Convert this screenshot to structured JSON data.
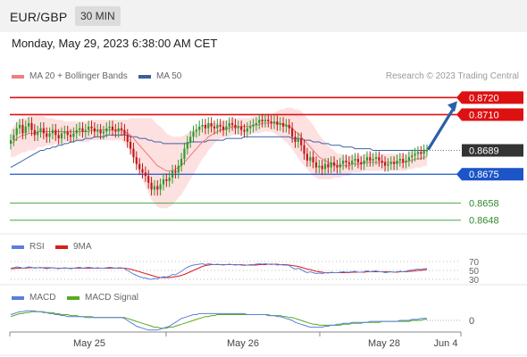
{
  "header": {
    "pair": "EUR/GBP",
    "interval": "30 MIN"
  },
  "timestamp": "Monday, May 29, 2023 6:38:00 AM CET",
  "legend": {
    "ma20_bb": "MA 20 + Bollinger Bands",
    "ma50": "MA 50",
    "credit": "Research © 2023 Trading Central"
  },
  "colors": {
    "price_candles": "#2e9a2e",
    "price_candles_down": "#c01a1a",
    "ma20": "#ee7777",
    "bollinger_fill": "#fde0e0",
    "ma50": "#4060a8",
    "resistance": "#dd1111",
    "current": "#333333",
    "pivot": "#1c55c8",
    "support": "#44a844",
    "arrow": "#2a5fa8",
    "rsi": "#5b7fd8",
    "rsi_9ma": "#d81c1c",
    "macd": "#5b7fd8",
    "macd_signal": "#55aa22"
  },
  "chart_data": [
    {
      "type": "candlestick",
      "name": "price",
      "x_ticks": [
        "May 25",
        "May 26",
        "May 28",
        "Jun 4"
      ],
      "y_ticks": [
        "0.8720",
        "0.8710",
        "0.8689",
        "0.8675",
        "0.8658",
        "0.8648"
      ],
      "levels": [
        {
          "label": "0.8720",
          "value": 0.872,
          "kind": "resistance"
        },
        {
          "label": "0.8710",
          "value": 0.871,
          "kind": "resistance"
        },
        {
          "label": "0.8689",
          "value": 0.8689,
          "kind": "current"
        },
        {
          "label": "0.8675",
          "value": 0.8675,
          "kind": "pivot"
        },
        {
          "label": "0.8658",
          "value": 0.8658,
          "kind": "support"
        },
        {
          "label": "0.8648",
          "value": 0.8648,
          "kind": "support"
        }
      ],
      "close": [
        0.8695,
        0.8698,
        0.8702,
        0.8704,
        0.8699,
        0.8703,
        0.8705,
        0.8701,
        0.8698,
        0.87,
        0.8702,
        0.8699,
        0.8697,
        0.8699,
        0.8701,
        0.8698,
        0.8696,
        0.8699,
        0.87,
        0.8698,
        0.8697,
        0.8699,
        0.8701,
        0.8702,
        0.87,
        0.8701,
        0.8703,
        0.8702,
        0.87,
        0.8701,
        0.8699,
        0.87,
        0.8702,
        0.8703,
        0.8701,
        0.87,
        0.8702,
        0.8701,
        0.8698,
        0.8694,
        0.869,
        0.8685,
        0.8681,
        0.8678,
        0.8676,
        0.8674,
        0.867,
        0.8666,
        0.8668,
        0.8666,
        0.8669,
        0.8672,
        0.8671,
        0.8673,
        0.8677,
        0.8676,
        0.868,
        0.8684,
        0.869,
        0.8694,
        0.8697,
        0.87,
        0.8701,
        0.8703,
        0.8704,
        0.8702,
        0.8705,
        0.8703,
        0.8702,
        0.8704,
        0.8703,
        0.8701,
        0.8703,
        0.8705,
        0.8704,
        0.8702,
        0.8703,
        0.8701,
        0.87,
        0.8702,
        0.8703,
        0.8704,
        0.8705,
        0.8707,
        0.8706,
        0.8707,
        0.8706,
        0.8705,
        0.8706,
        0.8704,
        0.8705,
        0.8703,
        0.8704,
        0.8702,
        0.8697,
        0.8694,
        0.8696,
        0.8692,
        0.8687,
        0.8683,
        0.8685,
        0.8682,
        0.8679,
        0.868,
        0.8678,
        0.8681,
        0.8679,
        0.8682,
        0.868,
        0.8679,
        0.8681,
        0.8683,
        0.8682,
        0.8681,
        0.8683,
        0.8684,
        0.8682,
        0.8681,
        0.8683,
        0.8685,
        0.8683,
        0.8684,
        0.8685,
        0.8683,
        0.8682,
        0.868,
        0.8681,
        0.8682,
        0.8681,
        0.8683,
        0.8684,
        0.8682,
        0.8683,
        0.8685,
        0.8686,
        0.8687,
        0.8688,
        0.8687,
        0.8689,
        0.8689
      ],
      "ma20": [
        0.8693,
        0.8694,
        0.8696,
        0.8697,
        0.8698,
        0.8698,
        0.8699,
        0.8699,
        0.8699,
        0.87,
        0.87,
        0.87,
        0.87,
        0.87,
        0.87,
        0.87,
        0.87,
        0.87,
        0.87,
        0.87,
        0.87,
        0.87,
        0.87,
        0.87,
        0.87,
        0.87,
        0.87,
        0.8701,
        0.8701,
        0.8701,
        0.8701,
        0.8701,
        0.8701,
        0.8701,
        0.8701,
        0.8701,
        0.8701,
        0.8701,
        0.87,
        0.8699,
        0.8698,
        0.8696,
        0.8694,
        0.8692,
        0.869,
        0.8688,
        0.8686,
        0.8684,
        0.8682,
        0.868,
        0.8679,
        0.8678,
        0.8677,
        0.8677,
        0.8677,
        0.8678,
        0.8679,
        0.868,
        0.8682,
        0.8684,
        0.8686,
        0.8688,
        0.869,
        0.8692,
        0.8694,
        0.8695,
        0.8697,
        0.8698,
        0.8699,
        0.87,
        0.8701,
        0.8701,
        0.8702,
        0.8702,
        0.8703,
        0.8703,
        0.8703,
        0.8703,
        0.8703,
        0.8703,
        0.8703,
        0.8704,
        0.8704,
        0.8704,
        0.8705,
        0.8705,
        0.8705,
        0.8705,
        0.8705,
        0.8705,
        0.8705,
        0.8704,
        0.8704,
        0.8703,
        0.8702,
        0.87,
        0.8699,
        0.8697,
        0.8695,
        0.8693,
        0.8691,
        0.8689,
        0.8687,
        0.8685,
        0.8684,
        0.8683,
        0.8682,
        0.8681,
        0.8681,
        0.868,
        0.868,
        0.868,
        0.868,
        0.868,
        0.8681,
        0.8681,
        0.8681,
        0.8681,
        0.8682,
        0.8682,
        0.8682,
        0.8682,
        0.8682,
        0.8682,
        0.8682,
        0.8682,
        0.8682,
        0.8682,
        0.8682,
        0.8682,
        0.8682,
        0.8682,
        0.8682,
        0.8683,
        0.8683,
        0.8684,
        0.8684,
        0.8684,
        0.8685,
        0.8685
      ],
      "ma50": [
        0.8679,
        0.868,
        0.8681,
        0.8682,
        0.8683,
        0.8684,
        0.8685,
        0.8686,
        0.8687,
        0.8688,
        0.8689,
        0.8689,
        0.869,
        0.869,
        0.8691,
        0.8691,
        0.8692,
        0.8692,
        0.8693,
        0.8693,
        0.8694,
        0.8694,
        0.8695,
        0.8695,
        0.8695,
        0.8696,
        0.8696,
        0.8696,
        0.8697,
        0.8697,
        0.8697,
        0.8697,
        0.8698,
        0.8698,
        0.8698,
        0.8698,
        0.8698,
        0.8698,
        0.8698,
        0.8698,
        0.8697,
        0.8697,
        0.8697,
        0.8696,
        0.8696,
        0.8696,
        0.8695,
        0.8695,
        0.8694,
        0.8694,
        0.8694,
        0.8693,
        0.8693,
        0.8693,
        0.8693,
        0.8693,
        0.8693,
        0.8693,
        0.8693,
        0.8693,
        0.8694,
        0.8694,
        0.8694,
        0.8694,
        0.8694,
        0.8694,
        0.8695,
        0.8695,
        0.8695,
        0.8695,
        0.8695,
        0.8695,
        0.8696,
        0.8696,
        0.8696,
        0.8696,
        0.8696,
        0.8696,
        0.8697,
        0.8697,
        0.8697,
        0.8697,
        0.8697,
        0.8697,
        0.8697,
        0.8697,
        0.8697,
        0.8697,
        0.8697,
        0.8697,
        0.8697,
        0.8697,
        0.8697,
        0.8697,
        0.8696,
        0.8696,
        0.8696,
        0.8696,
        0.8695,
        0.8695,
        0.8695,
        0.8694,
        0.8694,
        0.8694,
        0.8693,
        0.8693,
        0.8693,
        0.8692,
        0.8692,
        0.8692,
        0.8692,
        0.8691,
        0.8691,
        0.8691,
        0.8691,
        0.869,
        0.869,
        0.869,
        0.869,
        0.869,
        0.869,
        0.8689,
        0.8689,
        0.8689,
        0.8689,
        0.8689,
        0.8689,
        0.8689,
        0.8689,
        0.8689,
        0.8689,
        0.8689,
        0.8689,
        0.8689,
        0.8689,
        0.8689,
        0.8689,
        0.8689,
        0.8689,
        0.8689
      ],
      "bb_width": [
        0.0008,
        0.0009,
        0.001,
        0.001,
        0.001,
        0.001,
        0.001,
        0.001,
        0.001,
        0.0009,
        0.0009,
        0.0009,
        0.0008,
        0.0008,
        0.0008,
        0.0007,
        0.0007,
        0.0007,
        0.0006,
        0.0006,
        0.0006,
        0.0006,
        0.0006,
        0.0006,
        0.0006,
        0.0006,
        0.0006,
        0.0006,
        0.0006,
        0.0006,
        0.0006,
        0.0006,
        0.0006,
        0.0006,
        0.0006,
        0.0006,
        0.0006,
        0.0006,
        0.0007,
        0.0008,
        0.001,
        0.0012,
        0.0014,
        0.0016,
        0.0018,
        0.002,
        0.0022,
        0.0024,
        0.0024,
        0.0024,
        0.0024,
        0.0023,
        0.0022,
        0.0021,
        0.002,
        0.0019,
        0.0018,
        0.0017,
        0.0016,
        0.0015,
        0.0014,
        0.0013,
        0.0012,
        0.0011,
        0.001,
        0.0009,
        0.0008,
        0.0007,
        0.0006,
        0.0005,
        0.0005,
        0.0005,
        0.0005,
        0.0005,
        0.0005,
        0.0005,
        0.0005,
        0.0005,
        0.0005,
        0.0005,
        0.0005,
        0.0005,
        0.0005,
        0.0005,
        0.0005,
        0.0005,
        0.0005,
        0.0005,
        0.0006,
        0.0007,
        0.0008,
        0.0009,
        0.001,
        0.0011,
        0.0012,
        0.0013,
        0.0014,
        0.0015,
        0.0015,
        0.0015,
        0.0015,
        0.0015,
        0.0014,
        0.0013,
        0.0012,
        0.0011,
        0.001,
        0.0009,
        0.0008,
        0.0007,
        0.0007,
        0.0006,
        0.0006,
        0.0006,
        0.0005,
        0.0005,
        0.0005,
        0.0005,
        0.0005,
        0.0005,
        0.0005,
        0.0005,
        0.0005,
        0.0005,
        0.0005,
        0.0005,
        0.0005,
        0.0005,
        0.0005,
        0.0005,
        0.0005,
        0.0005,
        0.0005,
        0.0005,
        0.0005,
        0.0005,
        0.0005,
        0.0005,
        0.0005,
        0.0005
      ],
      "projection": {
        "from": 0.8689,
        "to": 0.872
      },
      "y_range": [
        0.864,
        0.8727
      ]
    },
    {
      "type": "line",
      "name": "RSI",
      "legend": [
        "RSI",
        "9MA"
      ],
      "y_ticks": [
        70,
        50,
        30
      ],
      "ylim": [
        20,
        80
      ],
      "rsi": [
        55,
        56,
        58,
        57,
        55,
        56,
        58,
        57,
        55,
        56,
        57,
        55,
        54,
        55,
        56,
        55,
        54,
        55,
        56,
        55,
        54,
        55,
        56,
        57,
        55,
        56,
        57,
        56,
        55,
        56,
        55,
        55,
        56,
        57,
        56,
        55,
        56,
        56,
        54,
        50,
        46,
        42,
        39,
        36,
        34,
        33,
        31,
        30,
        32,
        31,
        34,
        36,
        35,
        37,
        41,
        40,
        44,
        48,
        53,
        57,
        60,
        62,
        63,
        64,
        65,
        63,
        65,
        64,
        63,
        64,
        63,
        62,
        63,
        64,
        63,
        62,
        63,
        62,
        61,
        62,
        63,
        63,
        64,
        65,
        64,
        65,
        64,
        63,
        64,
        62,
        63,
        62,
        62,
        61,
        56,
        53,
        55,
        52,
        48,
        45,
        47,
        45,
        43,
        44,
        43,
        45,
        44,
        46,
        45,
        45,
        46,
        47,
        46,
        46,
        47,
        48,
        46,
        46,
        47,
        49,
        47,
        48,
        49,
        47,
        47,
        45,
        46,
        47,
        46,
        47,
        48,
        47,
        48,
        50,
        51,
        52,
        53,
        52,
        54,
        54
      ],
      "ma9": [
        54,
        54,
        55,
        55,
        55,
        55,
        56,
        56,
        56,
        56,
        56,
        56,
        56,
        56,
        56,
        55,
        55,
        55,
        55,
        55,
        55,
        55,
        55,
        55,
        55,
        55,
        55,
        55,
        55,
        55,
        55,
        55,
        55,
        55,
        55,
        55,
        55,
        55,
        55,
        54,
        53,
        51,
        49,
        47,
        45,
        43,
        41,
        39,
        37,
        35,
        34,
        34,
        34,
        34,
        35,
        36,
        37,
        39,
        41,
        44,
        47,
        50,
        53,
        56,
        59,
        61,
        62,
        63,
        63,
        63,
        63,
        63,
        63,
        63,
        63,
        63,
        63,
        63,
        62,
        62,
        62,
        62,
        62,
        63,
        63,
        63,
        64,
        64,
        64,
        64,
        63,
        63,
        63,
        62,
        61,
        60,
        59,
        57,
        55,
        53,
        52,
        50,
        48,
        47,
        46,
        45,
        45,
        45,
        45,
        45,
        45,
        45,
        45,
        45,
        46,
        46,
        46,
        46,
        46,
        47,
        47,
        47,
        47,
        47,
        47,
        47,
        47,
        47,
        46,
        46,
        47,
        47,
        47,
        48,
        48,
        49,
        50,
        50,
        51,
        52
      ]
    },
    {
      "type": "line",
      "name": "MACD",
      "legend": [
        "MACD",
        "MACD Signal"
      ],
      "y_ticks": [
        0
      ],
      "ylim": [
        -0.0012,
        0.0012
      ],
      "macd": [
        0.0006,
        0.0007,
        0.0008,
        0.0009,
        0.0009,
        0.001,
        0.001,
        0.001,
        0.001,
        0.0009,
        0.0009,
        0.0008,
        0.0008,
        0.0007,
        0.0007,
        0.0006,
        0.0006,
        0.0005,
        0.0005,
        0.0004,
        0.0004,
        0.0004,
        0.0004,
        0.0004,
        0.0004,
        0.0003,
        0.0003,
        0.0003,
        0.0003,
        0.0003,
        0.0003,
        0.0003,
        0.0003,
        0.0003,
        0.0003,
        0.0003,
        0.0003,
        0.0003,
        0.0002,
        0.0,
        -0.0002,
        -0.0004,
        -0.0006,
        -0.0007,
        -0.0008,
        -0.0009,
        -0.001,
        -0.001,
        -0.001,
        -0.001,
        -0.0009,
        -0.0008,
        -0.0007,
        -0.0006,
        -0.0004,
        -0.0002,
        0.0,
        0.0002,
        0.0003,
        0.0004,
        0.0005,
        0.0006,
        0.0006,
        0.0007,
        0.0007,
        0.0007,
        0.0007,
        0.0007,
        0.0007,
        0.0007,
        0.0007,
        0.0007,
        0.0007,
        0.0007,
        0.0007,
        0.0007,
        0.0007,
        0.0007,
        0.0007,
        0.0006,
        0.0006,
        0.0006,
        0.0006,
        0.0006,
        0.0006,
        0.0006,
        0.0005,
        0.0005,
        0.0005,
        0.0004,
        0.0004,
        0.0003,
        0.0002,
        0.0001,
        0.0,
        -0.0002,
        -0.0003,
        -0.0004,
        -0.0005,
        -0.0006,
        -0.0007,
        -0.0007,
        -0.0007,
        -0.0007,
        -0.0007,
        -0.0006,
        -0.0006,
        -0.0005,
        -0.0005,
        -0.0004,
        -0.0004,
        -0.0003,
        -0.0003,
        -0.0003,
        -0.0002,
        -0.0002,
        -0.0002,
        -0.0002,
        -0.0002,
        -0.0002,
        -0.0001,
        -0.0001,
        -0.0001,
        -0.0001,
        -0.0001,
        -0.0001,
        -0.0001,
        -0.0001,
        -0.0001,
        -0.0001,
        0.0,
        0.0,
        0.0,
        0.0,
        0.0001,
        0.0001,
        0.0001,
        0.0002,
        0.0002,
        0.0002
      ],
      "signal": [
        0.0004,
        0.0005,
        0.0006,
        0.0007,
        0.0007,
        0.0008,
        0.0008,
        0.0009,
        0.0009,
        0.0009,
        0.0009,
        0.0009,
        0.0008,
        0.0008,
        0.0008,
        0.0007,
        0.0007,
        0.0006,
        0.0006,
        0.0006,
        0.0005,
        0.0005,
        0.0005,
        0.0004,
        0.0004,
        0.0004,
        0.0004,
        0.0004,
        0.0003,
        0.0003,
        0.0003,
        0.0003,
        0.0003,
        0.0003,
        0.0003,
        0.0003,
        0.0003,
        0.0003,
        0.0003,
        0.0002,
        0.0001,
        0.0,
        -0.0001,
        -0.0002,
        -0.0003,
        -0.0004,
        -0.0005,
        -0.0006,
        -0.0007,
        -0.0007,
        -0.0008,
        -0.0008,
        -0.0008,
        -0.0007,
        -0.0007,
        -0.0006,
        -0.0005,
        -0.0004,
        -0.0003,
        -0.0002,
        -0.0001,
        0.0,
        0.0001,
        0.0002,
        0.0003,
        0.0004,
        0.0004,
        0.0005,
        0.0005,
        0.0006,
        0.0006,
        0.0006,
        0.0006,
        0.0006,
        0.0006,
        0.0006,
        0.0006,
        0.0006,
        0.0006,
        0.0006,
        0.0006,
        0.0006,
        0.0006,
        0.0006,
        0.0006,
        0.0006,
        0.0006,
        0.0005,
        0.0005,
        0.0005,
        0.0005,
        0.0004,
        0.0004,
        0.0003,
        0.0003,
        0.0002,
        0.0001,
        0.0,
        -0.0001,
        -0.0002,
        -0.0003,
        -0.0004,
        -0.0004,
        -0.0005,
        -0.0005,
        -0.0005,
        -0.0005,
        -0.0005,
        -0.0005,
        -0.0005,
        -0.0005,
        -0.0004,
        -0.0004,
        -0.0004,
        -0.0003,
        -0.0003,
        -0.0003,
        -0.0003,
        -0.0002,
        -0.0002,
        -0.0002,
        -0.0002,
        -0.0002,
        -0.0002,
        -0.0001,
        -0.0001,
        -0.0001,
        -0.0001,
        -0.0001,
        -0.0001,
        -0.0001,
        -0.0001,
        -0.0001,
        -0.0001,
        0.0,
        0.0,
        0.0,
        0.0,
        0.0001,
        0.0001
      ]
    }
  ]
}
